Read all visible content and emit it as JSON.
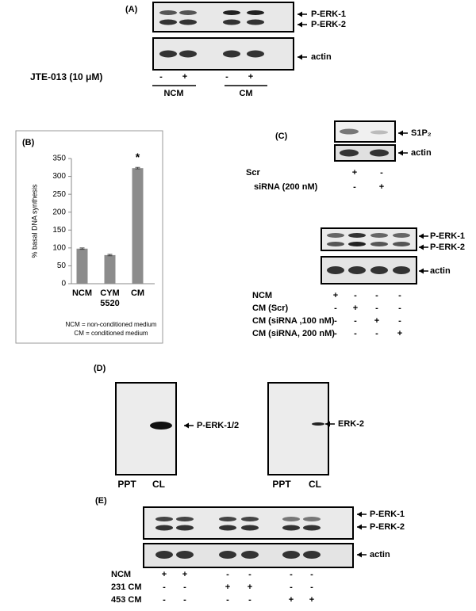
{
  "panel_a": {
    "label": "(A)",
    "bands": [
      "P-ERK-1",
      "P-ERK-2"
    ],
    "loading": "actin",
    "treatment": {
      "name": "JTE-013 (10 μM)",
      "signs": [
        "-",
        "+",
        "-",
        "+"
      ]
    },
    "groups": [
      "NCM",
      "CM"
    ]
  },
  "chart_data": {
    "type": "bar",
    "panel_label": "(B)",
    "ylabel": "% basal DNA synthesis",
    "categories": [
      "NCM",
      "CYM 5520",
      "CM"
    ],
    "values": [
      98,
      80,
      323
    ],
    "errors": [
      2,
      2,
      2
    ],
    "significance": [
      null,
      null,
      "*"
    ],
    "color": "#8c8c8c",
    "ylim": [
      0,
      350
    ],
    "yticks": [
      0,
      50,
      100,
      150,
      200,
      250,
      300,
      350
    ],
    "notes": [
      "NCM = non-conditioned medium",
      "CM = conditioned medium"
    ]
  },
  "panel_c": {
    "label": "(C)",
    "top_blot": {
      "bands": [
        "S1P₂"
      ],
      "loading": "actin"
    },
    "top_rows": [
      {
        "name": "Scr",
        "signs": [
          "+",
          "-"
        ]
      },
      {
        "name": "siRNA  (200 nM)",
        "signs": [
          "-",
          "+"
        ]
      }
    ],
    "bottom_blot": {
      "bands": [
        "P-ERK-1",
        "P-ERK-2"
      ],
      "loading": "actin"
    },
    "bottom_rows": [
      {
        "name": "NCM",
        "signs": [
          "+",
          "-",
          "-",
          "-"
        ]
      },
      {
        "name": "CM (Scr)",
        "signs": [
          "-",
          "+",
          "-",
          "-"
        ]
      },
      {
        "name": "CM (siRNA ,100 nM)",
        "signs": [
          "-",
          "-",
          "+",
          "-"
        ]
      },
      {
        "name": "CM (siRNA, 200 nM)",
        "signs": [
          "-",
          "-",
          "-",
          "+"
        ]
      }
    ]
  },
  "panel_d": {
    "label": "(D)",
    "blots": [
      {
        "band": "P-ERK-1/2",
        "lanes": [
          "PPT",
          "CL"
        ]
      },
      {
        "band": "ERK-2",
        "lanes": [
          "PPT",
          "CL"
        ]
      }
    ]
  },
  "panel_e": {
    "label": "(E)",
    "bands": [
      "P-ERK-1",
      "P-ERK-2"
    ],
    "loading": "actin",
    "rows": [
      {
        "name": "NCM",
        "signs": [
          "+",
          "+",
          "-",
          "-",
          "-",
          "-"
        ]
      },
      {
        "name": "231 CM",
        "signs": [
          "-",
          "-",
          "+",
          "+",
          "-",
          "-"
        ]
      },
      {
        "name": "453 CM",
        "signs": [
          "-",
          "-",
          "-",
          "-",
          "+",
          "+"
        ]
      }
    ]
  }
}
